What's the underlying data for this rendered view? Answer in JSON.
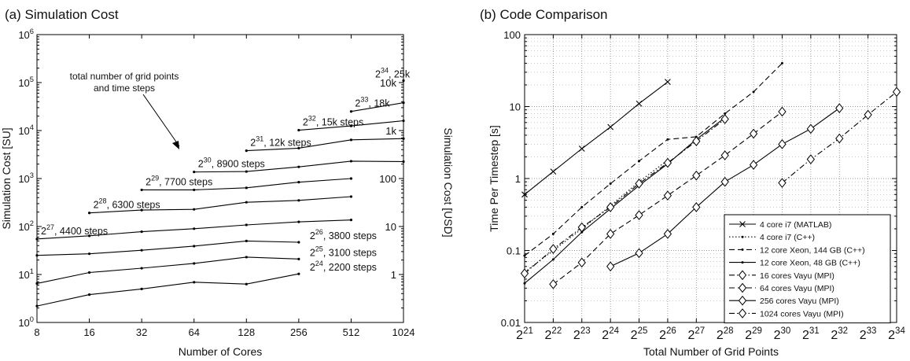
{
  "chart_data": [
    {
      "type": "line",
      "title": "(a) Simulation Cost",
      "xlabel": "Number of Cores",
      "ylabel": "Simulation Cost [SU]",
      "y2label": "Simulation Cost [USD]",
      "x_scale": "log2",
      "y_scale": "log10",
      "xlim": [
        8,
        1024
      ],
      "ylim": [
        1,
        1000000
      ],
      "x_ticks": [
        "8",
        "16",
        "32",
        "64",
        "128",
        "256",
        "512",
        "1024"
      ],
      "y2_ticks": [
        "1",
        "10",
        "100",
        "1k",
        "10k"
      ],
      "annotation": [
        "total number of grid points",
        "and time steps"
      ],
      "grid": false,
      "series": [
        {
          "exp": "24",
          "label": ", 2200 steps",
          "x": [
            8,
            16,
            32,
            64,
            128,
            256
          ],
          "y": [
            2.2,
            3.8,
            5.0,
            6.9,
            6.3,
            10.3
          ]
        },
        {
          "exp": "25",
          "label": ", 3100 steps",
          "x": [
            8,
            16,
            32,
            64,
            128,
            256
          ],
          "y": [
            6.5,
            11,
            13.5,
            17,
            23,
            21
          ]
        },
        {
          "exp": "26",
          "label": ", 3800 steps",
          "x": [
            8,
            16,
            32,
            64,
            128,
            256
          ],
          "y": [
            25,
            27,
            32,
            39,
            50,
            47
          ]
        },
        {
          "exp": "27",
          "label": ", 4400 steps",
          "x": [
            8,
            16,
            32,
            64,
            128,
            256,
            512
          ],
          "y": [
            55,
            64,
            78,
            90,
            108,
            125,
            137
          ]
        },
        {
          "exp": "28",
          "label": ", 6300 steps",
          "x": [
            16,
            32,
            64,
            128,
            256,
            512
          ],
          "y": [
            192,
            220,
            228,
            320,
            350,
            420
          ]
        },
        {
          "exp": "29",
          "label": ", 7700 steps",
          "x": [
            32,
            64,
            128,
            256,
            512
          ],
          "y": [
            580,
            580,
            640,
            840,
            1000
          ]
        },
        {
          "exp": "30",
          "label": ", 8900 steps",
          "x": [
            64,
            128,
            256,
            512,
            1024
          ],
          "y": [
            1370,
            1400,
            1750,
            2300,
            2250
          ]
        },
        {
          "exp": "31",
          "label": ", 12k steps",
          "x": [
            128,
            256,
            512,
            1024
          ],
          "y": [
            3800,
            4300,
            6400,
            6800
          ]
        },
        {
          "exp": "32",
          "label": ", 15k steps",
          "x": [
            256,
            512,
            1024
          ],
          "y": [
            10200,
            12500,
            16000
          ]
        },
        {
          "exp": "33",
          "label": ", 18k",
          "x": [
            512,
            1024
          ],
          "y": [
            25000,
            38000
          ]
        },
        {
          "exp": "34",
          "label": ", 25k",
          "x": [
            1024
          ],
          "y": [
            110000
          ]
        }
      ]
    },
    {
      "type": "line",
      "title": "(b) Code Comparison",
      "xlabel": "Total Number of Grid Points",
      "ylabel": "Time Per Timestep [s]",
      "x_scale": "log2",
      "y_scale": "log10",
      "xlim_exp": [
        21,
        34
      ],
      "ylim": [
        0.01,
        100
      ],
      "y_ticks": [
        "0.01",
        "0.1",
        "1",
        "10",
        "100"
      ],
      "x_tick_base": "2",
      "grid": true,
      "legend_position": "bottom-right",
      "series": [
        {
          "name": "4 core i7 (MATLAB)",
          "style": "solid",
          "marker": "x",
          "x_exp": [
            21,
            22,
            23,
            24,
            25,
            26
          ],
          "y": [
            0.6,
            1.25,
            2.6,
            5.2,
            11,
            22
          ]
        },
        {
          "name": "4 core i7 (C++)",
          "style": "dotted",
          "marker": "dot",
          "x_exp": [
            21,
            22,
            23,
            24,
            25,
            26
          ],
          "y": [
            0.05,
            0.1,
            0.2,
            0.42,
            0.9,
            1.8
          ]
        },
        {
          "name": "12 core Xeon, 144 GB (C++)",
          "style": "dashed",
          "marker": "dot",
          "x_exp": [
            21,
            22,
            23,
            24,
            25,
            26,
            27,
            28,
            29,
            30
          ],
          "y": [
            0.085,
            0.17,
            0.4,
            0.85,
            1.75,
            3.5,
            3.8,
            8,
            16,
            40
          ]
        },
        {
          "name": "12 core Xeon, 48 GB (C++)",
          "style": "solid",
          "marker": "dot",
          "x_exp": [
            21,
            22,
            23,
            24,
            25,
            26,
            27,
            28
          ],
          "y": [
            0.035,
            0.075,
            0.18,
            0.38,
            0.8,
            1.6,
            3.5,
            7
          ]
        },
        {
          "name": "16 cores Vayu (MPI)",
          "style": "dashdot",
          "marker": "diamond",
          "x_exp": [
            21,
            22,
            23,
            24,
            25,
            26,
            27,
            28
          ],
          "y": [
            0.048,
            0.105,
            0.21,
            0.4,
            0.85,
            1.65,
            3.3,
            6.7
          ]
        },
        {
          "name": "64 cores Vayu (MPI)",
          "style": "dashed",
          "marker": "diamond",
          "x_exp": [
            22,
            23,
            24,
            25,
            26,
            27,
            28,
            29,
            30
          ],
          "y": [
            0.034,
            0.068,
            0.17,
            0.31,
            0.58,
            1.1,
            2.1,
            4.2,
            8.5
          ]
        },
        {
          "name": "256 cores Vayu (MPI)",
          "style": "solid",
          "marker": "diamond",
          "x_exp": [
            24,
            25,
            26,
            27,
            28,
            29,
            30,
            31,
            32
          ],
          "y": [
            0.06,
            0.092,
            0.17,
            0.4,
            0.9,
            1.55,
            3.0,
            4.9,
            9.5
          ]
        },
        {
          "name": "1024 cores Vayu (MPI)",
          "style": "dashdot",
          "marker": "diamond",
          "x_exp": [
            30,
            31,
            32,
            33,
            34
          ],
          "y": [
            0.87,
            1.85,
            3.6,
            7.7,
            16
          ]
        }
      ]
    }
  ]
}
